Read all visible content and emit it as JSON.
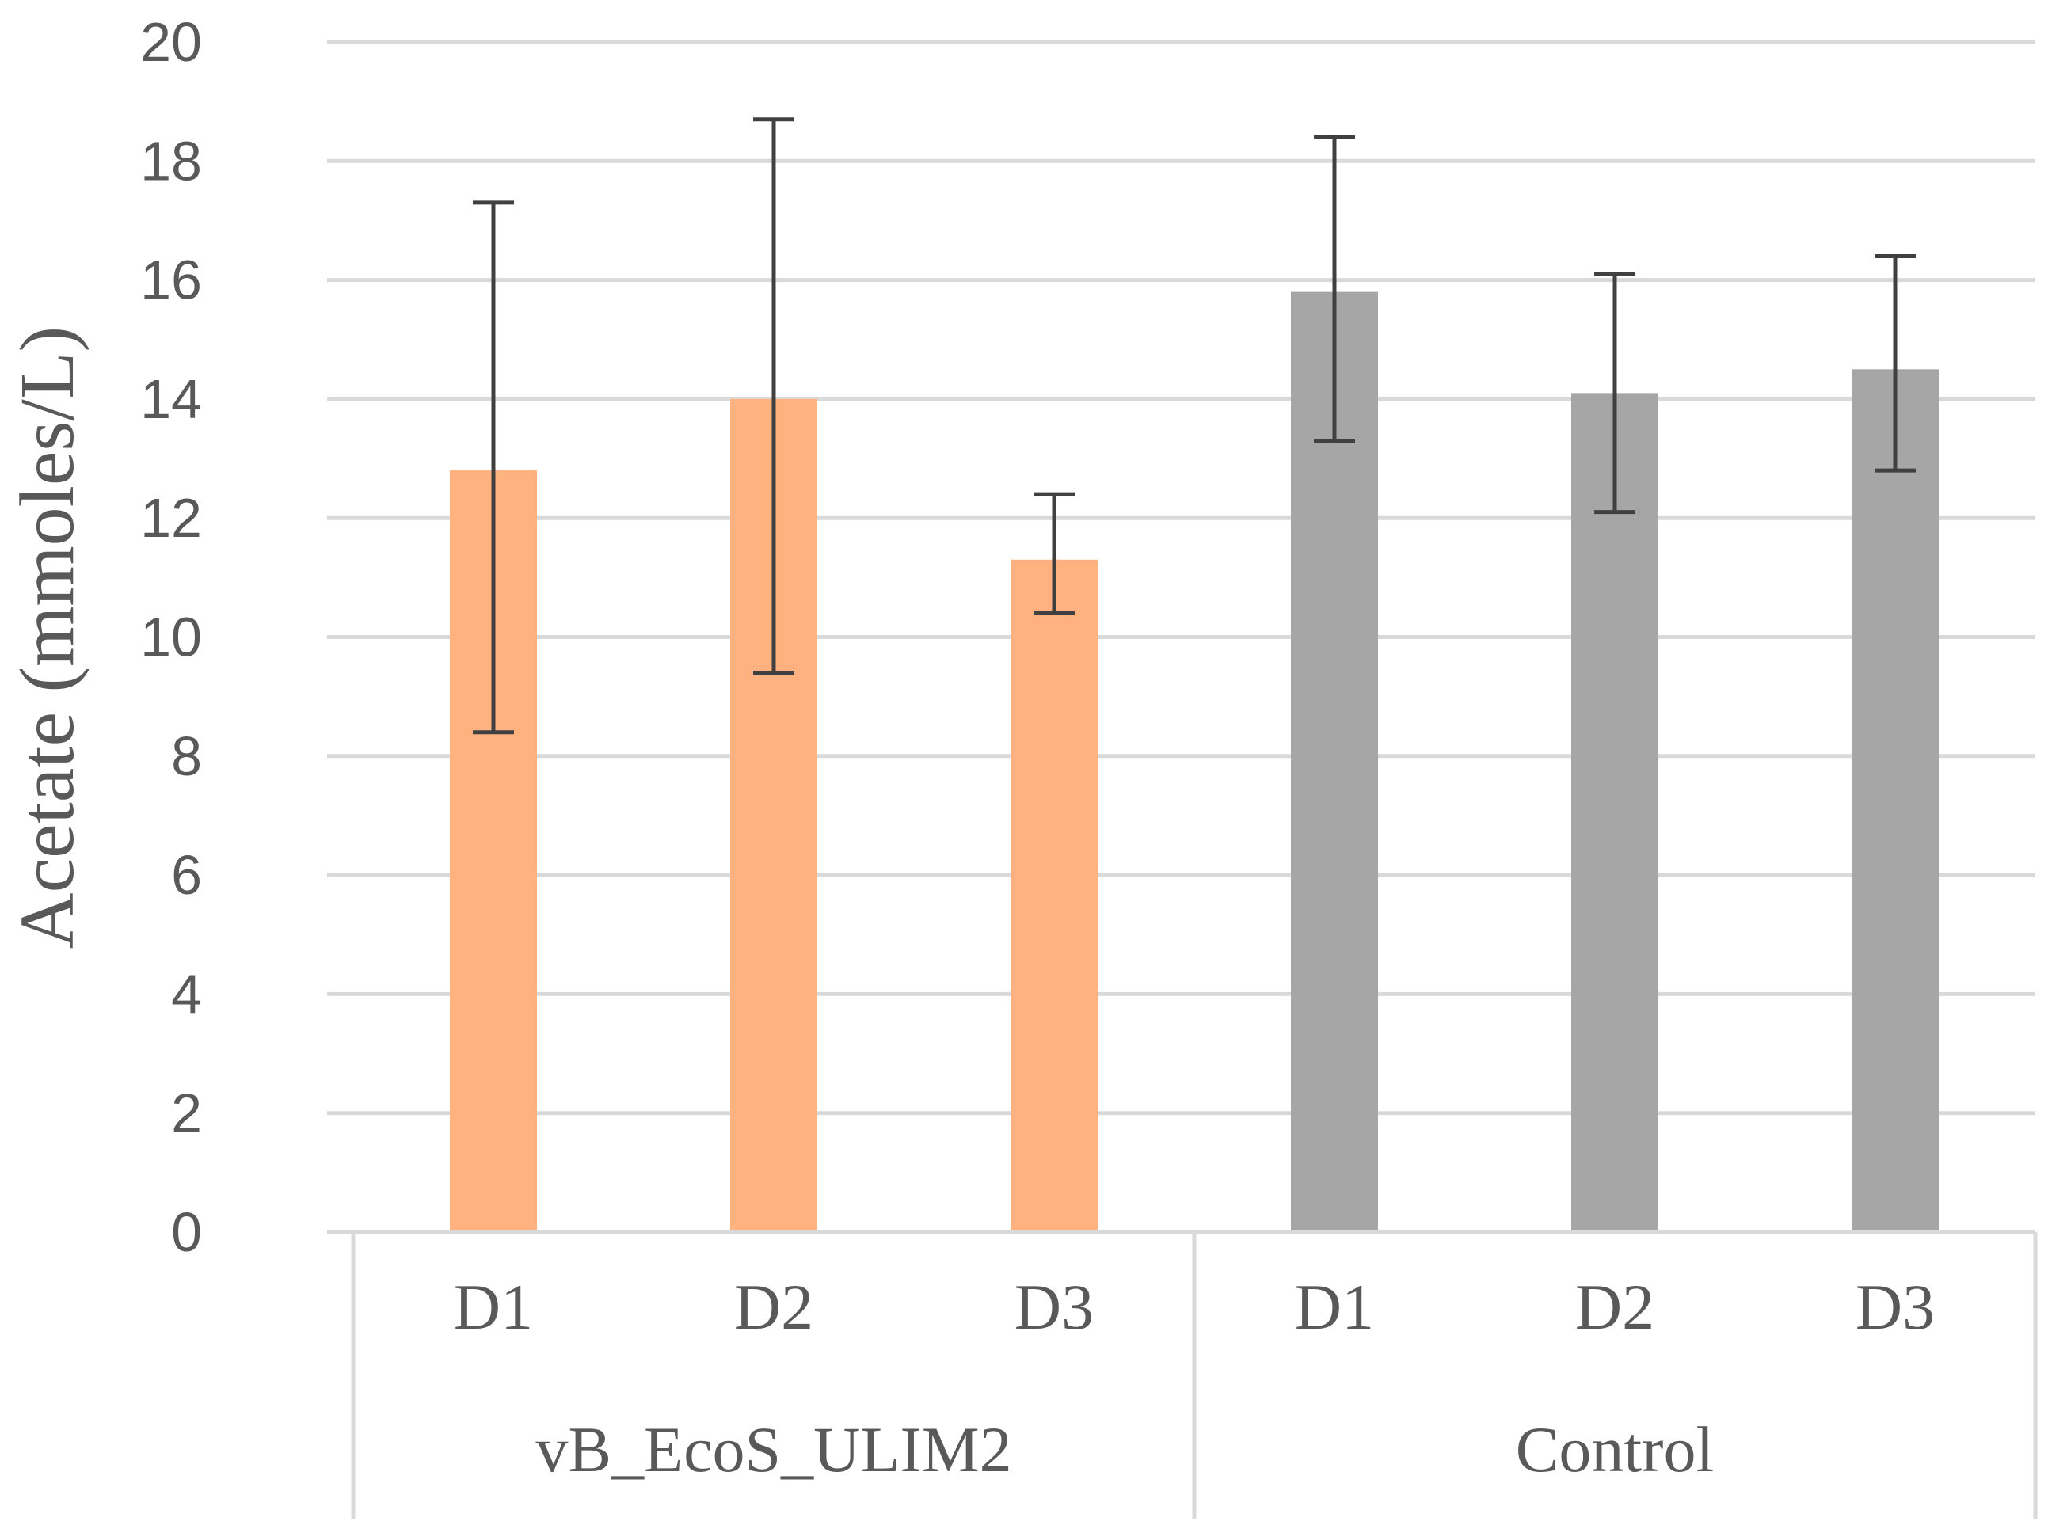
{
  "chart_data": {
    "type": "bar",
    "title": "",
    "xlabel": "",
    "ylabel": "Acetate (mmoles/L)",
    "ylim": [
      0,
      20
    ],
    "yticks": [
      0,
      2,
      4,
      6,
      8,
      10,
      12,
      14,
      16,
      18,
      20
    ],
    "grid": true,
    "legend": "none",
    "groups": [
      {
        "name": "vB_EcoS_ULIM2",
        "color": "#FFB27F",
        "bars": [
          {
            "label": "D1",
            "value": 12.8,
            "err_low": 8.4,
            "err_high": 17.3
          },
          {
            "label": "D2",
            "value": 14.0,
            "err_low": 9.4,
            "err_high": 18.7
          },
          {
            "label": "D3",
            "value": 11.3,
            "err_low": 10.4,
            "err_high": 12.4
          }
        ]
      },
      {
        "name": "Control",
        "color": "#A6A6A6",
        "bars": [
          {
            "label": "D1",
            "value": 15.8,
            "err_low": 13.3,
            "err_high": 18.4
          },
          {
            "label": "D2",
            "value": 14.1,
            "err_low": 12.1,
            "err_high": 16.1
          },
          {
            "label": "D3",
            "value": 14.5,
            "err_low": 12.8,
            "err_high": 16.4
          }
        ]
      }
    ],
    "colors": {
      "grid": "#D9D9D9",
      "errorbar": "#404040",
      "text": "#595959"
    }
  }
}
